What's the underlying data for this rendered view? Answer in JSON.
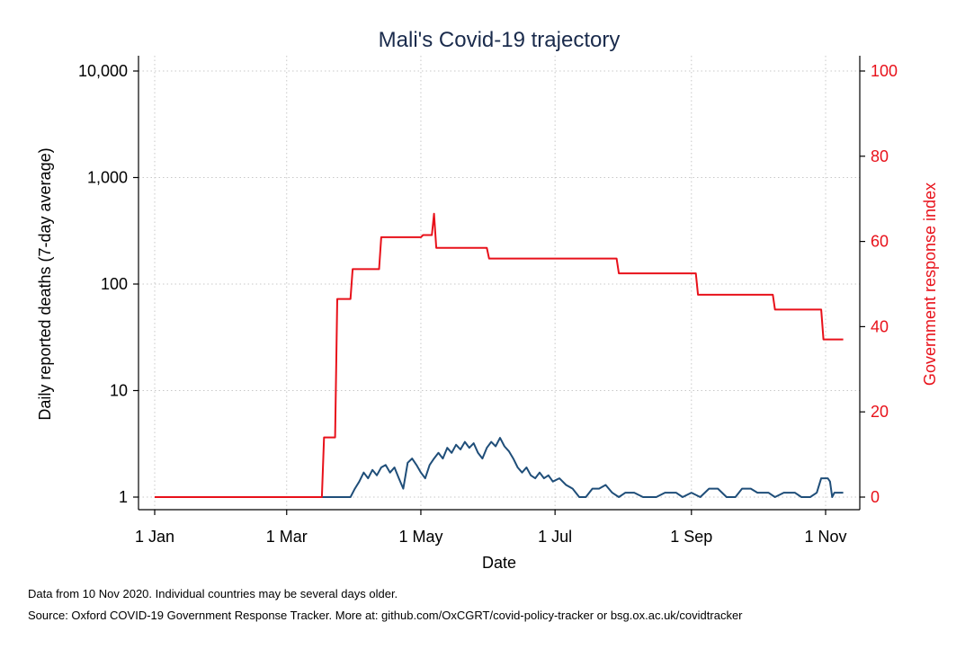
{
  "chart_data": {
    "type": "line",
    "title": "Mali's Covid-19 trajectory",
    "xlabel": "Date",
    "ylabel_left": "Daily reported deaths (7-day average)",
    "ylabel_right": "Government response index",
    "x_ticks": [
      {
        "date": "2020-01-01",
        "label": "1 Jan"
      },
      {
        "date": "2020-03-01",
        "label": "1 Mar"
      },
      {
        "date": "2020-05-01",
        "label": "1 May"
      },
      {
        "date": "2020-07-01",
        "label": "1 Jul"
      },
      {
        "date": "2020-09-01",
        "label": "1 Sep"
      },
      {
        "date": "2020-11-01",
        "label": "1 Nov"
      }
    ],
    "y_left": {
      "scale": "log",
      "range": [
        1,
        10000
      ],
      "ticks": [
        {
          "value": 1,
          "label": "1"
        },
        {
          "value": 10,
          "label": "10"
        },
        {
          "value": 100,
          "label": "100"
        },
        {
          "value": 1000,
          "label": "1,000"
        },
        {
          "value": 10000,
          "label": "10,000"
        }
      ]
    },
    "y_right": {
      "scale": "linear",
      "range": [
        0,
        100
      ],
      "ticks": [
        {
          "value": 0,
          "label": "0"
        },
        {
          "value": 20,
          "label": "20"
        },
        {
          "value": 40,
          "label": "40"
        },
        {
          "value": 60,
          "label": "60"
        },
        {
          "value": 80,
          "label": "80"
        },
        {
          "value": 100,
          "label": "100"
        }
      ]
    },
    "grid": true,
    "colors": {
      "deaths": "#1f4e79",
      "response": "#e8111a",
      "right_axis": "#e8111a",
      "title": "#1a2b4c"
    },
    "series": [
      {
        "axis": "left",
        "points": [
          [
            "2020-01-01",
            1
          ],
          [
            "2020-03-30",
            1
          ],
          [
            "2020-04-01",
            1.2
          ],
          [
            "2020-04-03",
            1.4
          ],
          [
            "2020-04-05",
            1.7
          ],
          [
            "2020-04-07",
            1.5
          ],
          [
            "2020-04-09",
            1.8
          ],
          [
            "2020-04-11",
            1.6
          ],
          [
            "2020-04-13",
            1.9
          ],
          [
            "2020-04-15",
            2.0
          ],
          [
            "2020-04-17",
            1.7
          ],
          [
            "2020-04-19",
            1.9
          ],
          [
            "2020-04-21",
            1.5
          ],
          [
            "2020-04-23",
            1.2
          ],
          [
            "2020-04-25",
            2.1
          ],
          [
            "2020-04-27",
            2.3
          ],
          [
            "2020-04-29",
            2.0
          ],
          [
            "2020-05-01",
            1.7
          ],
          [
            "2020-05-03",
            1.5
          ],
          [
            "2020-05-05",
            2.0
          ],
          [
            "2020-05-07",
            2.3
          ],
          [
            "2020-05-09",
            2.6
          ],
          [
            "2020-05-11",
            2.3
          ],
          [
            "2020-05-13",
            2.9
          ],
          [
            "2020-05-15",
            2.6
          ],
          [
            "2020-05-17",
            3.1
          ],
          [
            "2020-05-19",
            2.8
          ],
          [
            "2020-05-21",
            3.3
          ],
          [
            "2020-05-23",
            2.9
          ],
          [
            "2020-05-25",
            3.2
          ],
          [
            "2020-05-27",
            2.6
          ],
          [
            "2020-05-29",
            2.3
          ],
          [
            "2020-05-31",
            2.9
          ],
          [
            "2020-06-02",
            3.3
          ],
          [
            "2020-06-04",
            3.0
          ],
          [
            "2020-06-06",
            3.6
          ],
          [
            "2020-06-08",
            3.0
          ],
          [
            "2020-06-10",
            2.7
          ],
          [
            "2020-06-12",
            2.3
          ],
          [
            "2020-06-14",
            1.9
          ],
          [
            "2020-06-16",
            1.7
          ],
          [
            "2020-06-18",
            1.9
          ],
          [
            "2020-06-20",
            1.6
          ],
          [
            "2020-06-22",
            1.5
          ],
          [
            "2020-06-24",
            1.7
          ],
          [
            "2020-06-26",
            1.5
          ],
          [
            "2020-06-28",
            1.6
          ],
          [
            "2020-06-30",
            1.4
          ],
          [
            "2020-07-03",
            1.5
          ],
          [
            "2020-07-06",
            1.3
          ],
          [
            "2020-07-09",
            1.2
          ],
          [
            "2020-07-12",
            1.0
          ],
          [
            "2020-07-15",
            1.0
          ],
          [
            "2020-07-18",
            1.2
          ],
          [
            "2020-07-21",
            1.2
          ],
          [
            "2020-07-24",
            1.3
          ],
          [
            "2020-07-27",
            1.1
          ],
          [
            "2020-07-30",
            1.0
          ],
          [
            "2020-08-02",
            1.1
          ],
          [
            "2020-08-06",
            1.1
          ],
          [
            "2020-08-10",
            1.0
          ],
          [
            "2020-08-16",
            1.0
          ],
          [
            "2020-08-20",
            1.1
          ],
          [
            "2020-08-25",
            1.1
          ],
          [
            "2020-08-28",
            1.0
          ],
          [
            "2020-09-01",
            1.1
          ],
          [
            "2020-09-05",
            1.0
          ],
          [
            "2020-09-09",
            1.2
          ],
          [
            "2020-09-13",
            1.2
          ],
          [
            "2020-09-17",
            1.0
          ],
          [
            "2020-09-21",
            1.0
          ],
          [
            "2020-09-24",
            1.2
          ],
          [
            "2020-09-28",
            1.2
          ],
          [
            "2020-10-01",
            1.1
          ],
          [
            "2020-10-06",
            1.1
          ],
          [
            "2020-10-09",
            1.0
          ],
          [
            "2020-10-13",
            1.1
          ],
          [
            "2020-10-18",
            1.1
          ],
          [
            "2020-10-21",
            1.0
          ],
          [
            "2020-10-25",
            1.0
          ],
          [
            "2020-10-28",
            1.1
          ],
          [
            "2020-10-30",
            1.5
          ],
          [
            "2020-11-02",
            1.5
          ],
          [
            "2020-11-03",
            1.4
          ],
          [
            "2020-11-04",
            1.0
          ],
          [
            "2020-11-05",
            1.1
          ],
          [
            "2020-11-09",
            1.1
          ]
        ]
      },
      {
        "axis": "right",
        "points": [
          [
            "2020-01-01",
            0
          ],
          [
            "2020-03-17",
            0
          ],
          [
            "2020-03-18",
            14
          ],
          [
            "2020-03-23",
            14
          ],
          [
            "2020-03-24",
            46.5
          ],
          [
            "2020-03-30",
            46.5
          ],
          [
            "2020-03-31",
            53.5
          ],
          [
            "2020-04-12",
            53.5
          ],
          [
            "2020-04-13",
            61
          ],
          [
            "2020-05-01",
            61
          ],
          [
            "2020-05-02",
            61.5
          ],
          [
            "2020-05-06",
            61.5
          ],
          [
            "2020-05-07",
            66.5
          ],
          [
            "2020-05-08",
            58.5
          ],
          [
            "2020-05-31",
            58.5
          ],
          [
            "2020-06-01",
            56
          ],
          [
            "2020-07-29",
            56
          ],
          [
            "2020-07-30",
            52.5
          ],
          [
            "2020-09-03",
            52.5
          ],
          [
            "2020-09-04",
            47.5
          ],
          [
            "2020-10-08",
            47.5
          ],
          [
            "2020-10-09",
            44
          ],
          [
            "2020-10-30",
            44
          ],
          [
            "2020-10-31",
            37
          ],
          [
            "2020-11-09",
            37
          ]
        ]
      }
    ]
  },
  "notes": {
    "line1": "Data from 10 Nov 2020. Individual countries may be several days older.",
    "line2": "Source: Oxford COVID-19 Government Response Tracker. More at: github.com/OxCGRT/covid-policy-tracker or bsg.ox.ac.uk/covidtracker"
  }
}
